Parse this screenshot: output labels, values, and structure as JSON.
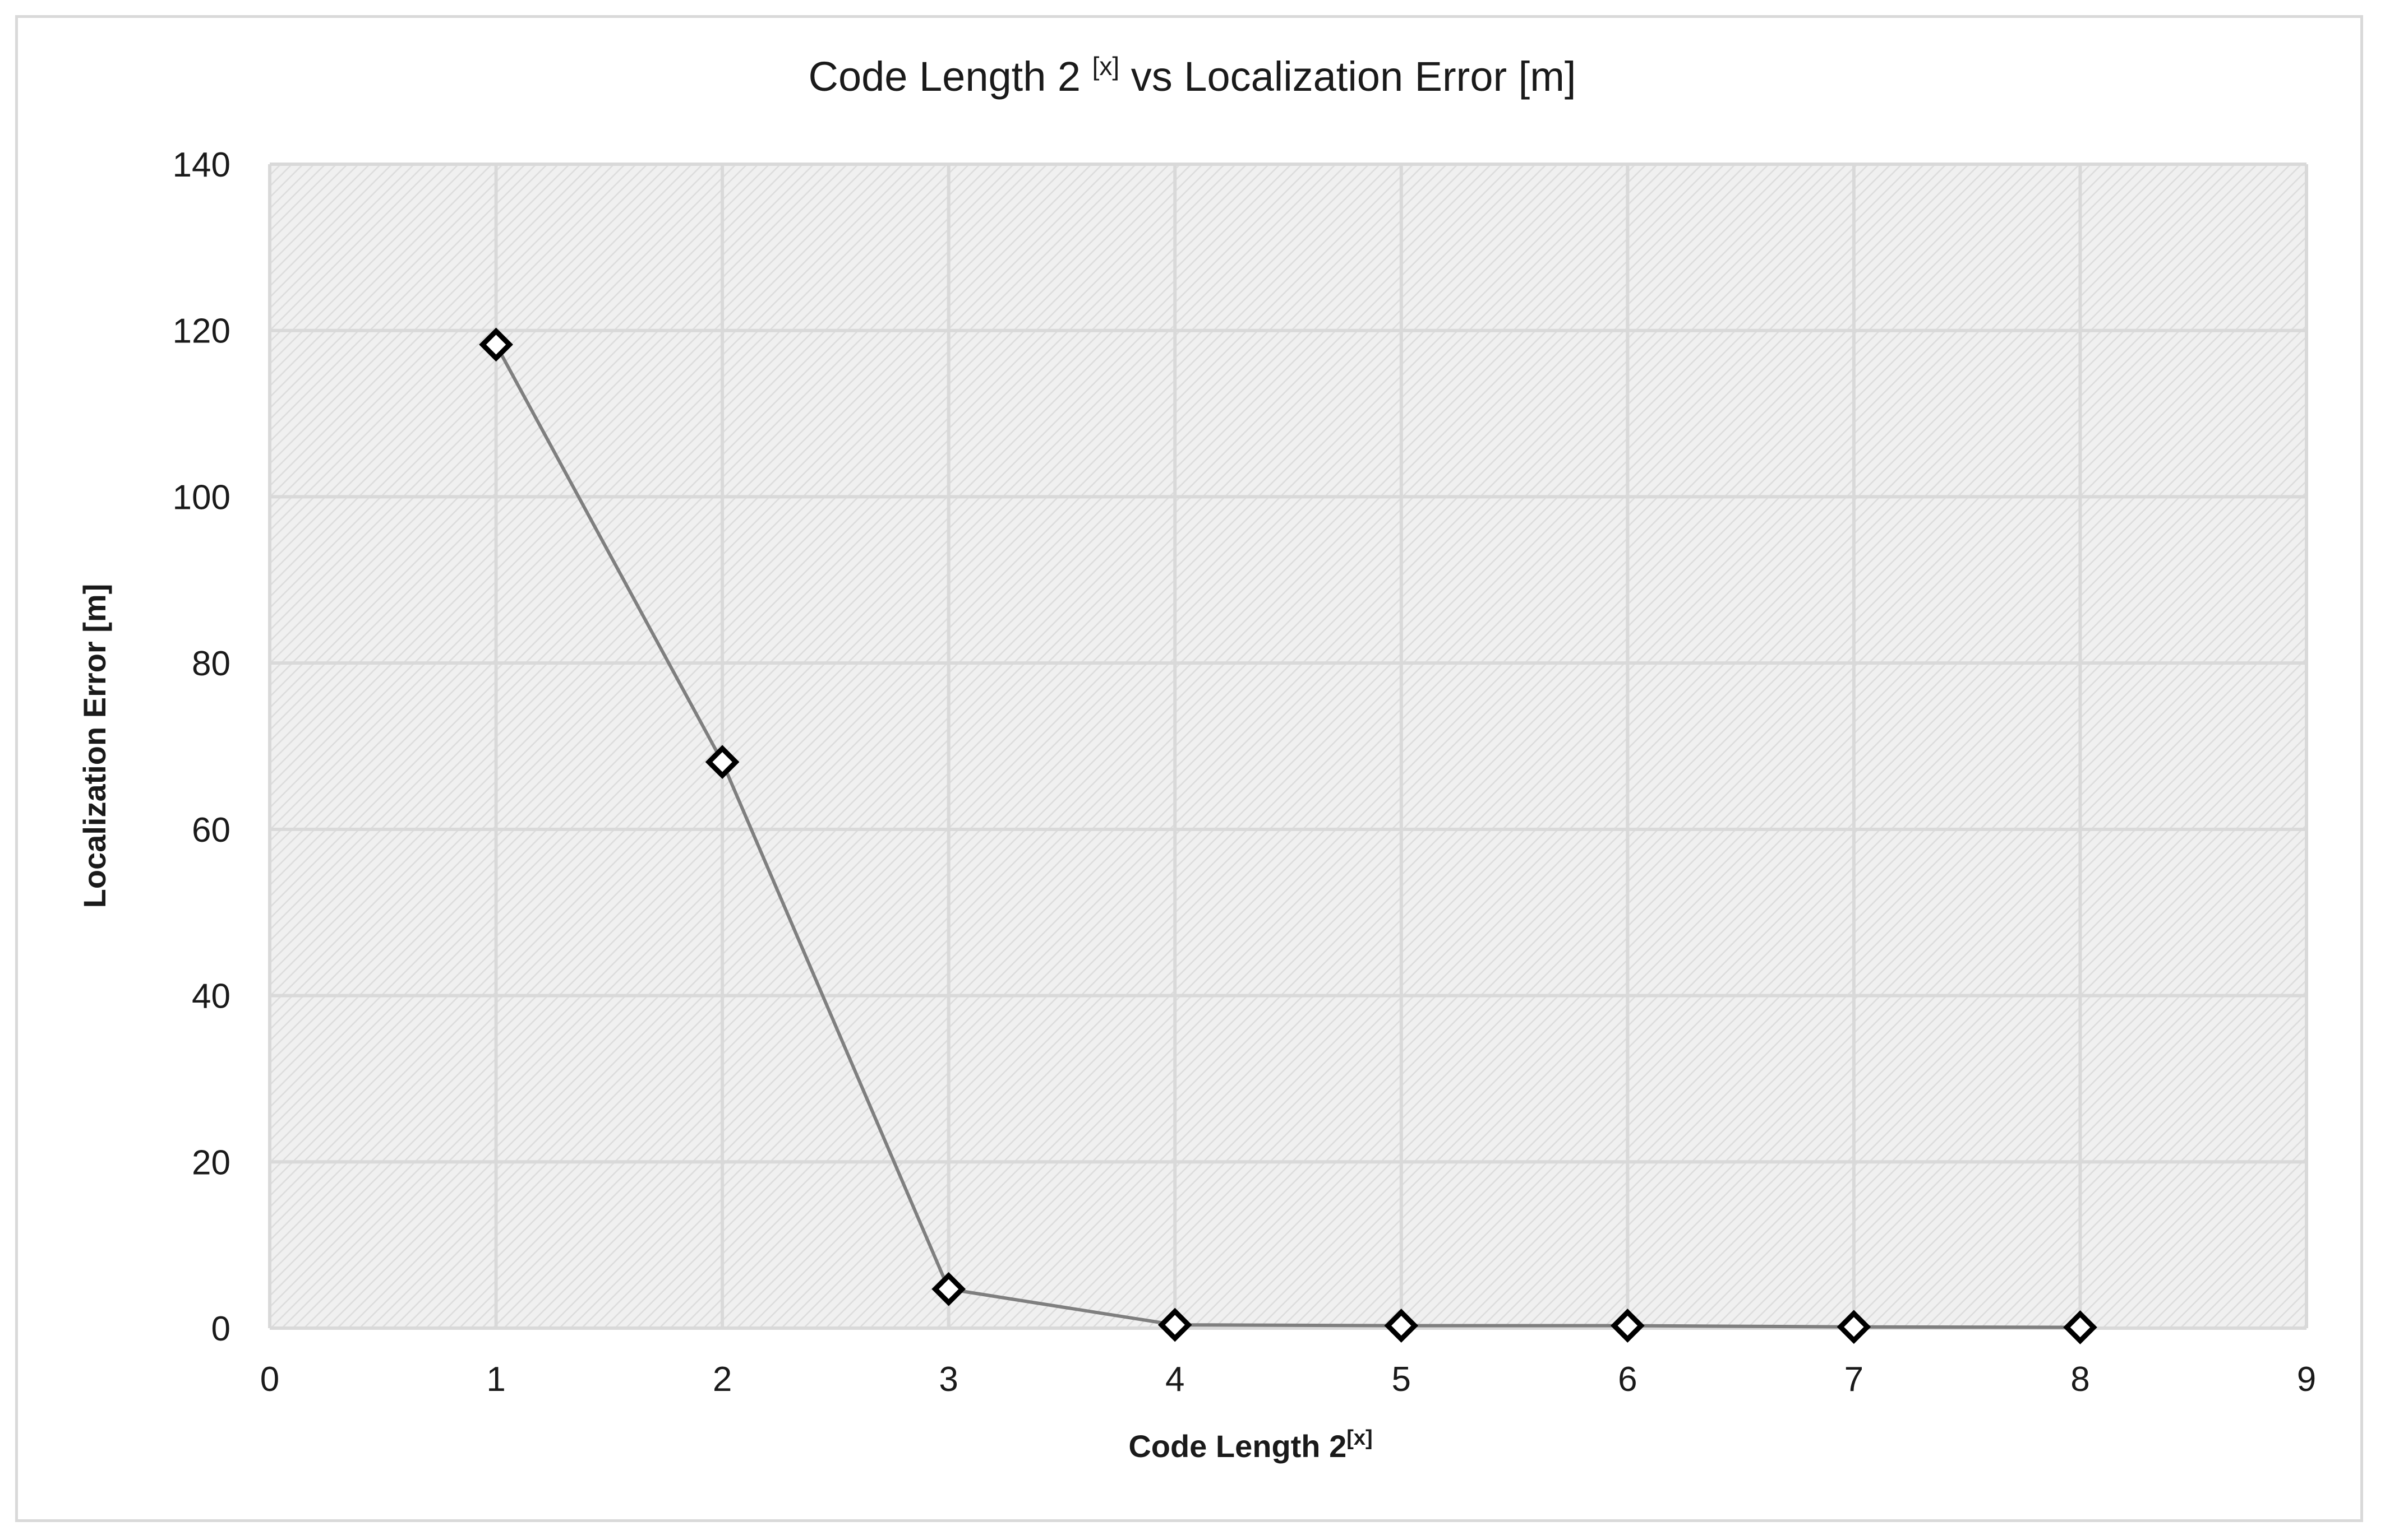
{
  "chart_data": {
    "type": "line",
    "title": {
      "main": "Code Length 2 ",
      "sup": "[x]",
      "rest": " vs Localization Error [m]"
    },
    "xlabel": {
      "main": "Code Length 2",
      "sup": "[x]"
    },
    "ylabel": "Localization Error [m]",
    "xlim": [
      0,
      9
    ],
    "ylim": [
      0,
      140
    ],
    "xticks": [
      0,
      1,
      2,
      3,
      4,
      5,
      6,
      7,
      8,
      9
    ],
    "yticks": [
      0,
      20,
      40,
      60,
      80,
      100,
      120,
      140
    ],
    "grid": true,
    "legend": "none",
    "series": [
      {
        "x": [
          1,
          2,
          3,
          4,
          5,
          6,
          7,
          8
        ],
        "y": [
          118.3,
          68.1,
          4.7,
          0.4,
          0.3,
          0.3,
          0.15,
          0.1
        ],
        "line_color": "#7f7f7f",
        "marker": "diamond",
        "marker_color": "#000000"
      }
    ],
    "plot_background": "hatched light gray"
  }
}
